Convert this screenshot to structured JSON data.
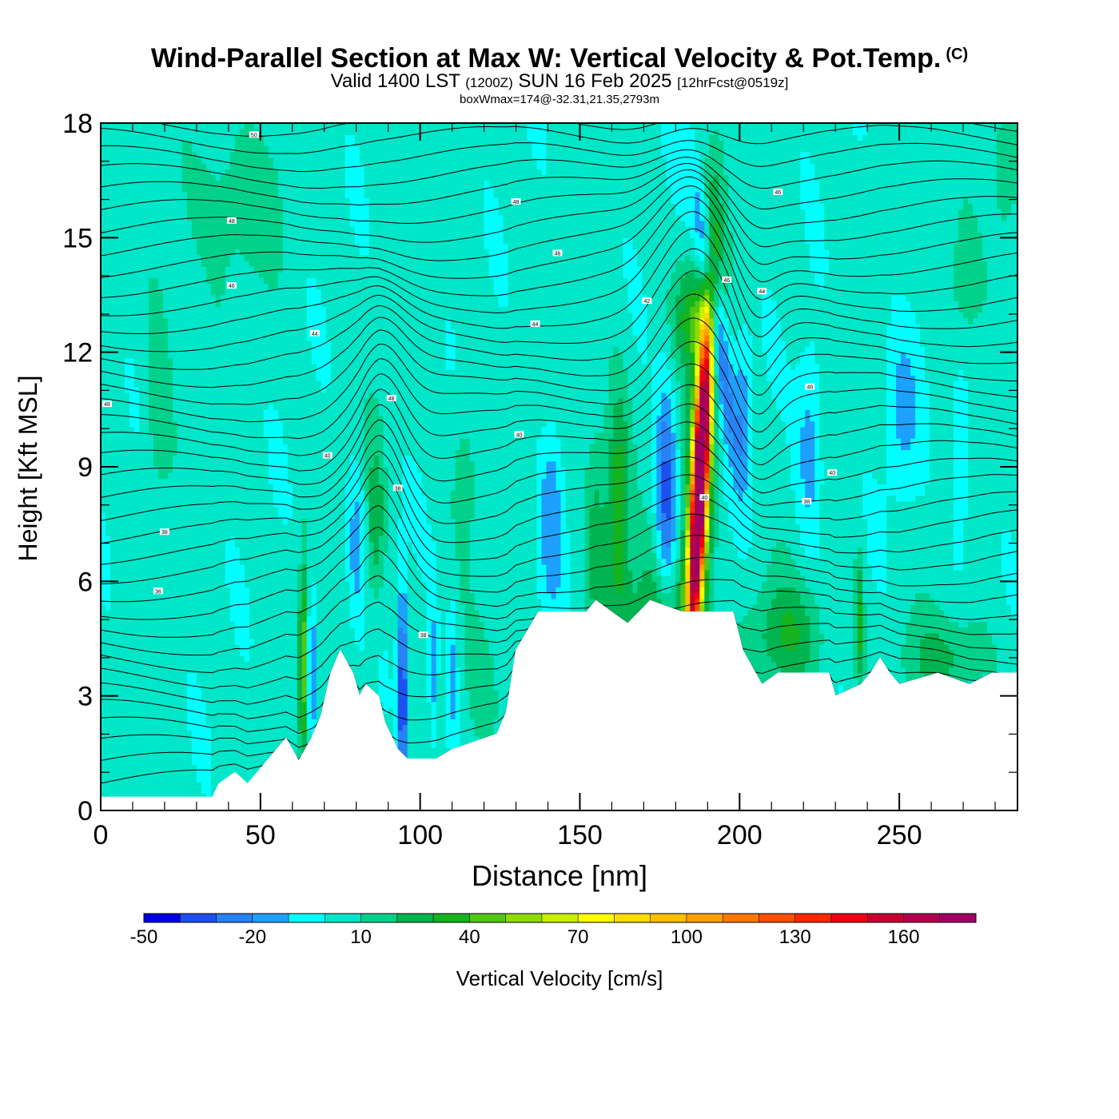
{
  "title": {
    "main": "Wind-Parallel Section at Max W: Vertical Velocity & Pot.Temp.",
    "copyright": "(C)",
    "sub_prefix": "Valid 1400 LST",
    "sub_utc": "(1200Z)",
    "sub_date": "SUN 16 Feb 2025",
    "sub_fcst": "[12hrFcst@0519z]",
    "meta": "boxWmax=174@-32.31,21.35,2793m"
  },
  "chart_data": {
    "type": "heatmap",
    "xlabel": "Distance [nm]",
    "ylabel": "Height [Kft MSL]",
    "xlim": [
      0,
      287
    ],
    "ylim": [
      0,
      18
    ],
    "x_ticks": [
      0,
      50,
      100,
      150,
      200,
      250
    ],
    "y_ticks": [
      0,
      3,
      6,
      9,
      12,
      15,
      18
    ],
    "grid": false,
    "colorbar": {
      "label": "Vertical Velocity [cm/s]",
      "tick_labels": [
        "-50",
        "-20",
        "10",
        "40",
        "70",
        "100",
        "130",
        "160"
      ],
      "tick_values": [
        -50,
        -20,
        10,
        40,
        70,
        100,
        130,
        160
      ],
      "range": [
        -50,
        180
      ],
      "step": 10,
      "colors": [
        "#0000e6",
        "#1e50f0",
        "#2882f5",
        "#1ea0ff",
        "#00ffff",
        "#00e6c8",
        "#00d28c",
        "#00b450",
        "#14b41e",
        "#50c814",
        "#8cdc00",
        "#c8f000",
        "#ffff00",
        "#ffdc00",
        "#ffbe00",
        "#ffa000",
        "#ff7800",
        "#ff5000",
        "#ff2800",
        "#f00014",
        "#c80032",
        "#b40050",
        "#a00064"
      ]
    },
    "terrain": [
      [
        0,
        0.35
      ],
      [
        35,
        0.35
      ],
      [
        37,
        0.7
      ],
      [
        42,
        1.0
      ],
      [
        46,
        0.7
      ],
      [
        49,
        1.0
      ],
      [
        52,
        1.3
      ],
      [
        55,
        1.6
      ],
      [
        58,
        1.9
      ],
      [
        62,
        1.3
      ],
      [
        66,
        1.9
      ],
      [
        69,
        2.5
      ],
      [
        72,
        3.6
      ],
      [
        75,
        4.2
      ],
      [
        79,
        3.6
      ],
      [
        81,
        3.0
      ],
      [
        83,
        3.3
      ],
      [
        87,
        3.0
      ],
      [
        89,
        2.3
      ],
      [
        93,
        1.6
      ],
      [
        96,
        1.35
      ],
      [
        105,
        1.35
      ],
      [
        110,
        1.6
      ],
      [
        124,
        2.0
      ],
      [
        127,
        2.6
      ],
      [
        130,
        4.2
      ],
      [
        137,
        5.2
      ],
      [
        152,
        5.2
      ],
      [
        155,
        5.5
      ],
      [
        160,
        5.2
      ],
      [
        165,
        4.9
      ],
      [
        172,
        5.5
      ],
      [
        182,
        5.2
      ],
      [
        198,
        5.2
      ],
      [
        201,
        4.2
      ],
      [
        205,
        3.6
      ],
      [
        207,
        3.3
      ],
      [
        212,
        3.6
      ],
      [
        228,
        3.6
      ],
      [
        230,
        3.0
      ],
      [
        238,
        3.3
      ],
      [
        241,
        3.6
      ],
      [
        244,
        4.0
      ],
      [
        247,
        3.6
      ],
      [
        250,
        3.3
      ],
      [
        262,
        3.6
      ],
      [
        272,
        3.3
      ],
      [
        279,
        3.6
      ],
      [
        287,
        3.6
      ]
    ],
    "theta_contour_labels": [
      {
        "x": 48,
        "y": 17.7,
        "text": "50"
      },
      {
        "x": 130,
        "y": 15.95,
        "text": "48"
      },
      {
        "x": 41,
        "y": 15.45,
        "text": "48"
      },
      {
        "x": 212,
        "y": 16.2,
        "text": "46"
      },
      {
        "x": 143,
        "y": 14.6,
        "text": "46"
      },
      {
        "x": 41,
        "y": 13.75,
        "text": "46"
      },
      {
        "x": 196,
        "y": 13.9,
        "text": "46"
      },
      {
        "x": 207,
        "y": 13.6,
        "text": "44"
      },
      {
        "x": 171,
        "y": 13.35,
        "text": "42"
      },
      {
        "x": 136,
        "y": 12.75,
        "text": "44"
      },
      {
        "x": 67,
        "y": 12.5,
        "text": "44"
      },
      {
        "x": 2,
        "y": 10.65,
        "text": "48"
      },
      {
        "x": 91,
        "y": 10.8,
        "text": "48"
      },
      {
        "x": 222,
        "y": 11.1,
        "text": "48"
      },
      {
        "x": 131,
        "y": 9.85,
        "text": "40"
      },
      {
        "x": 71,
        "y": 9.3,
        "text": "40"
      },
      {
        "x": 229,
        "y": 8.85,
        "text": "40"
      },
      {
        "x": 93,
        "y": 8.45,
        "text": "38"
      },
      {
        "x": 189,
        "y": 8.2,
        "text": "40"
      },
      {
        "x": 221,
        "y": 8.1,
        "text": "38"
      },
      {
        "x": 20,
        "y": 7.3,
        "text": "38"
      },
      {
        "x": 18,
        "y": 5.75,
        "text": "36"
      },
      {
        "x": 101,
        "y": 4.6,
        "text": "38"
      }
    ],
    "w_features": [
      {
        "x": 187.5,
        "y": 8.5,
        "sx": 1.6,
        "sy": 3.0,
        "tilt": 0.6,
        "value": 174
      },
      {
        "x": 187.5,
        "y": 8.5,
        "sx": 2.8,
        "sy": 4.2,
        "tilt": 0.6,
        "value": 60
      },
      {
        "x": 192,
        "y": 13.0,
        "sx": 2.2,
        "sy": 2.2,
        "tilt": -1.6,
        "value": -45
      },
      {
        "x": 177,
        "y": 8.2,
        "sx": 2.2,
        "sy": 2.0,
        "tilt": 0.0,
        "value": -40
      },
      {
        "x": 185,
        "y": 13.0,
        "sx": 4.0,
        "sy": 1.0,
        "tilt": 0.0,
        "value": 30
      },
      {
        "x": 94.5,
        "y": 3.0,
        "sx": 1.0,
        "sy": 2.0,
        "tilt": 0.0,
        "value": -48
      },
      {
        "x": 63.5,
        "y": 4.0,
        "sx": 1.0,
        "sy": 1.8,
        "tilt": 0.0,
        "value": 45
      },
      {
        "x": 66,
        "y": 3.6,
        "sx": 1.0,
        "sy": 1.5,
        "tilt": 0.0,
        "value": -25
      },
      {
        "x": 162,
        "y": 8.0,
        "sx": 2.5,
        "sy": 2.2,
        "tilt": 0.0,
        "value": 35
      },
      {
        "x": 155,
        "y": 7.5,
        "sx": 2.5,
        "sy": 2.2,
        "tilt": 0.0,
        "value": 20
      },
      {
        "x": 141,
        "y": 7.6,
        "sx": 2.5,
        "sy": 1.8,
        "tilt": 0.0,
        "value": -20
      },
      {
        "x": 222,
        "y": 9.5,
        "sx": 3.0,
        "sy": 1.8,
        "tilt": 0.0,
        "value": -20
      },
      {
        "x": 269,
        "y": 9.0,
        "sx": 2.0,
        "sy": 1.8,
        "tilt": 0.0,
        "value": -18
      },
      {
        "x": 251,
        "y": 10.5,
        "sx": 4.0,
        "sy": 1.6,
        "tilt": 0.0,
        "value": -15
      },
      {
        "x": 201,
        "y": 10.5,
        "sx": 2.0,
        "sy": 1.5,
        "tilt": 0.0,
        "value": -20
      },
      {
        "x": 114,
        "y": 9.0,
        "sx": 3.0,
        "sy": 1.5,
        "tilt": 0.0,
        "value": 12
      },
      {
        "x": 86,
        "y": 7.5,
        "sx": 2.0,
        "sy": 1.6,
        "tilt": 0.0,
        "value": 22
      },
      {
        "x": 80,
        "y": 7.0,
        "sx": 2.0,
        "sy": 1.5,
        "tilt": 0.0,
        "value": -18
      },
      {
        "x": 237.5,
        "y": 5.0,
        "sx": 1.0,
        "sy": 1.2,
        "tilt": 0.0,
        "value": 30
      },
      {
        "x": 18,
        "y": 11.0,
        "sx": 3.0,
        "sy": 2.0,
        "tilt": 0.0,
        "value": 15
      },
      {
        "x": 40,
        "y": 16.0,
        "sx": 12.0,
        "sy": 1.5,
        "tilt": 0.0,
        "value": 12
      },
      {
        "x": 175,
        "y": 5.0,
        "sx": 8.0,
        "sy": 1.2,
        "tilt": 0.0,
        "value": 25
      },
      {
        "x": 215,
        "y": 4.6,
        "sx": 8.0,
        "sy": 1.0,
        "tilt": 0.0,
        "value": 25
      },
      {
        "x": 265,
        "y": 4.0,
        "sx": 10.0,
        "sy": 0.8,
        "tilt": 0.0,
        "value": 18
      },
      {
        "x": 120,
        "y": 3.0,
        "sx": 4.0,
        "sy": 1.2,
        "tilt": 0.0,
        "value": 10
      },
      {
        "x": 104,
        "y": 3.5,
        "sx": 1.0,
        "sy": 1.5,
        "tilt": 0.0,
        "value": -20
      },
      {
        "x": 110,
        "y": 3.5,
        "sx": 1.2,
        "sy": 1.5,
        "tilt": 0.0,
        "value": -18
      },
      {
        "x": 270,
        "y": 14.0,
        "sx": 4.0,
        "sy": 1.5,
        "tilt": 0.0,
        "value": 15
      },
      {
        "x": 283,
        "y": 17.0,
        "sx": 3.0,
        "sy": 1.5,
        "tilt": 0.0,
        "value": 15
      }
    ]
  }
}
